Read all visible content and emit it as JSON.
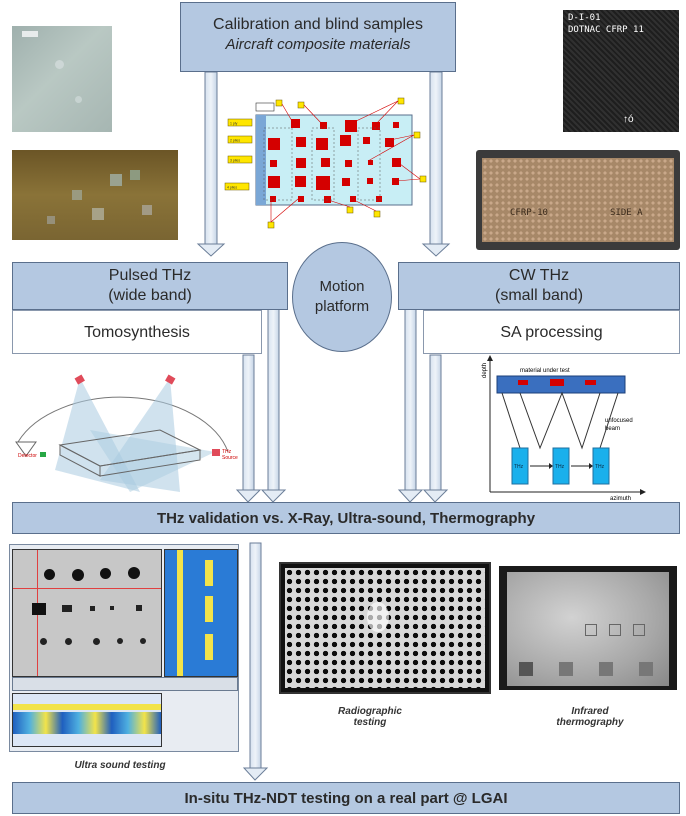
{
  "top_box": {
    "line1": "Calibration and blind samples",
    "line2": "Aircraft composite materials"
  },
  "pulsed": {
    "line1": "Pulsed THz",
    "line2": "(wide band)",
    "method": "Tomosynthesis"
  },
  "motion": {
    "line1": "Motion",
    "line2": "platform"
  },
  "cw": {
    "line1": "CW THz",
    "line2": "(small band)",
    "method": "SA processing"
  },
  "validation": {
    "label": "THz validation vs. X-Ray, Ultra-sound, Thermography"
  },
  "insitu": {
    "label": "In-situ THz-NDT testing on a real part @ LGAI"
  },
  "captions": {
    "ultrasound": "Ultra sound testing",
    "radiographic_1": "Radiographic",
    "radiographic_2": "testing",
    "infrared_1": "Infrared",
    "infrared_2": "thermography"
  },
  "photo_labels": {
    "dotnac_1": "D-I-01",
    "dotnac_2": "DOTNAC CFRP 11",
    "cfrp": "CFRP-10",
    "side": "SIDE A"
  },
  "tomo_labels": {
    "detector": "Detector",
    "source_1": "THz",
    "source_2": "Source"
  },
  "sa_diagram": {
    "material": "material under test",
    "depth": "depth",
    "azimuth": "azimuth",
    "unfocused_1": "unfocused",
    "unfocused_2": "beam",
    "thz": "THz"
  },
  "sample_labels": [
    "1 ply",
    "2 plies",
    "3 plies",
    "4 plies"
  ],
  "colors": {
    "box_fill": "#b4c8e1",
    "box_border": "#5a6f8c",
    "defect_red": "#d40000",
    "panel_cyan": "#c8eef5",
    "thz_blue": "#1ab0ec"
  }
}
